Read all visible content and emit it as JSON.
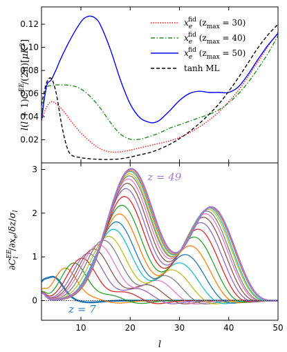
{
  "chart_data": [
    {
      "type": "line",
      "panel": "top",
      "ylabel": "l(l+1)C_l^{EE}/(2π)[μK²]",
      "xlim": [
        2,
        50
      ],
      "ylim": [
        0,
        0.135
      ],
      "yticks": [
        0.02,
        0.04,
        0.06,
        0.08,
        0.1,
        0.12
      ],
      "ytick_labels": [
        "0.02",
        "0.04",
        "0.06",
        "0.08",
        "0.10",
        "0.12"
      ],
      "legend_position": "top-right",
      "series": [
        {
          "name": "x_e^fid (z_max = 30)",
          "legend": {
            "main": "x",
            "sub": "e",
            "sup": "fid",
            "args": " (z",
            "args_sub": "max",
            "args_end": " = 30)"
          },
          "color": "#ff0000",
          "style": "dotted",
          "x": [
            2,
            3,
            4,
            5,
            6,
            7,
            8,
            10,
            12,
            14,
            16,
            18,
            20,
            22,
            24,
            26,
            28,
            30,
            32,
            34,
            36,
            38,
            40,
            42,
            44,
            46,
            48,
            50
          ],
          "values": [
            0.037,
            0.048,
            0.053,
            0.051,
            0.047,
            0.042,
            0.036,
            0.026,
            0.018,
            0.012,
            0.0095,
            0.0095,
            0.011,
            0.013,
            0.015,
            0.017,
            0.019,
            0.022,
            0.026,
            0.031,
            0.037,
            0.044,
            0.053,
            0.063,
            0.075,
            0.088,
            0.101,
            0.113
          ]
        },
        {
          "name": "x_e^fid (z_max = 40)",
          "legend": {
            "main": "x",
            "sub": "e",
            "sup": "fid",
            "args": " (z",
            "args_sub": "max",
            "args_end": " = 40)"
          },
          "color": "#228b22",
          "style": "dashdot",
          "x": [
            2,
            3,
            4,
            5,
            6,
            8,
            10,
            12,
            14,
            16,
            18,
            20,
            22,
            24,
            26,
            28,
            30,
            32,
            34,
            36,
            38,
            40,
            42,
            44,
            46,
            48,
            50
          ],
          "values": [
            0.044,
            0.064,
            0.067,
            0.0675,
            0.0675,
            0.067,
            0.064,
            0.057,
            0.047,
            0.035,
            0.025,
            0.0205,
            0.0205,
            0.023,
            0.026,
            0.03,
            0.033,
            0.036,
            0.039,
            0.042,
            0.046,
            0.052,
            0.06,
            0.07,
            0.082,
            0.095,
            0.11
          ]
        },
        {
          "name": "x_e^fid (z_max = 50)",
          "legend": {
            "main": "x",
            "sub": "e",
            "sup": "fid",
            "args": " (z",
            "args_sub": "max",
            "args_end": " = 50)"
          },
          "color": "#0000ff",
          "style": "solid",
          "x": [
            2,
            3,
            4,
            5,
            6,
            8,
            10,
            11,
            12,
            13,
            14,
            16,
            18,
            20,
            22,
            24,
            25,
            26,
            28,
            30,
            32,
            34,
            36,
            38,
            40,
            42,
            44,
            46,
            48,
            50
          ],
          "values": [
            0.037,
            0.066,
            0.072,
            0.081,
            0.091,
            0.108,
            0.122,
            0.126,
            0.127,
            0.125,
            0.119,
            0.098,
            0.072,
            0.051,
            0.039,
            0.035,
            0.035,
            0.037,
            0.045,
            0.054,
            0.06,
            0.062,
            0.061,
            0.061,
            0.061,
            0.066,
            0.077,
            0.09,
            0.102,
            0.112
          ]
        },
        {
          "name": "tanh ML",
          "legend": {
            "main": "tanh ML"
          },
          "color": "#000000",
          "style": "dashed",
          "x": [
            2,
            3,
            4,
            5,
            6,
            7,
            8,
            10,
            12,
            14,
            16,
            18,
            20,
            22,
            24,
            26,
            28,
            30,
            32,
            34,
            36,
            38,
            40,
            42,
            44,
            46,
            48,
            50
          ],
          "values": [
            0.05,
            0.069,
            0.073,
            0.06,
            0.035,
            0.016,
            0.007,
            0.0045,
            0.0035,
            0.003,
            0.003,
            0.0035,
            0.005,
            0.007,
            0.009,
            0.012,
            0.016,
            0.021,
            0.027,
            0.034,
            0.042,
            0.051,
            0.062,
            0.074,
            0.087,
            0.1,
            0.111,
            0.12
          ]
        }
      ]
    },
    {
      "type": "line",
      "panel": "bottom",
      "xlabel": "l",
      "ylabel": "∂C_l^{EE}/∂x_e/δz/σ_l",
      "xlim": [
        2,
        50
      ],
      "ylim": [
        -0.45,
        3.15
      ],
      "xticks": [
        10,
        20,
        30,
        40,
        50
      ],
      "xtick_labels": [
        "10",
        "20",
        "30",
        "40",
        "50"
      ],
      "yticks": [
        0,
        1,
        2,
        3
      ],
      "ytick_labels": [
        "0",
        "1",
        "2",
        "3"
      ],
      "zero_line": {
        "style": "dotted",
        "color": "#000000"
      },
      "annotations": [
        {
          "text": "z = 49",
          "x": 23.5,
          "y": 2.75,
          "color": "#a07cc8"
        },
        {
          "text": "z = 7",
          "x": 7.5,
          "y": -0.28,
          "color": "#2a7fbf"
        }
      ],
      "series_params": {
        "note": "response curves for z = 7 ... 49; each curve has a primary peak near x1 and a second peak near x2",
        "curves": [
          {
            "z": 7,
            "color": "#1f77b4",
            "width": 2.6,
            "a1": 0.52,
            "x1": 4.3,
            "s1": 1.9,
            "a2": 0.04,
            "x2": 6.5,
            "s2": 2.0
          },
          {
            "z": 9,
            "color": "#ff7f0e",
            "a1": 0.74,
            "x1": 6.8,
            "s1": 2.3,
            "a2": 0.06,
            "x2": 12.0,
            "s2": 2.2
          },
          {
            "z": 11,
            "color": "#2ca02c",
            "a1": 0.86,
            "x1": 8.6,
            "s1": 2.6,
            "a2": 0.12,
            "x2": 16.0,
            "s2": 2.4
          },
          {
            "z": 13,
            "color": "#d62728",
            "a1": 0.97,
            "x1": 10.2,
            "s1": 2.9,
            "a2": 0.19,
            "x2": 19.0,
            "s2": 2.6
          },
          {
            "z": 15,
            "color": "#9467bd",
            "a1": 1.08,
            "x1": 11.5,
            "s1": 3.1,
            "a2": 0.27,
            "x2": 21.5,
            "s2": 2.8
          },
          {
            "z": 17,
            "color": "#8c564b",
            "a1": 1.18,
            "x1": 12.6,
            "s1": 3.3,
            "a2": 0.36,
            "x2": 23.5,
            "s2": 3.0
          },
          {
            "z": 19,
            "color": "#e377c2",
            "a1": 1.28,
            "x1": 13.6,
            "s1": 3.5,
            "a2": 0.46,
            "x2": 25.5,
            "s2": 3.1
          },
          {
            "z": 21,
            "color": "#7f7f7f",
            "a1": 1.38,
            "x1": 14.6,
            "s1": 3.6,
            "a2": 0.57,
            "x2": 27.0,
            "s2": 3.3
          },
          {
            "z": 23,
            "color": "#bcbd22",
            "a1": 1.47,
            "x1": 15.6,
            "s1": 3.7,
            "a2": 0.7,
            "x2": 28.5,
            "s2": 3.5
          },
          {
            "z": 25,
            "color": "#17becf",
            "a1": 1.63,
            "x1": 16.6,
            "s1": 3.8,
            "a2": 0.86,
            "x2": 30.0,
            "s2": 3.6
          },
          {
            "z": 27,
            "color": "#1f77b4",
            "a1": 1.8,
            "x1": 17.2,
            "s1": 3.9,
            "a2": 1.05,
            "x2": 31.2,
            "s2": 3.7
          },
          {
            "z": 29,
            "color": "#ff7f0e",
            "a1": 1.98,
            "x1": 17.8,
            "s1": 4.0,
            "a2": 1.25,
            "x2": 32.2,
            "s2": 3.8
          },
          {
            "z": 31,
            "color": "#2ca02c",
            "a1": 2.18,
            "x1": 18.3,
            "s1": 4.1,
            "a2": 1.45,
            "x2": 33.0,
            "s2": 3.9
          },
          {
            "z": 33,
            "color": "#d62728",
            "a1": 2.38,
            "x1": 18.8,
            "s1": 4.2,
            "a2": 1.63,
            "x2": 33.8,
            "s2": 4.0
          },
          {
            "z": 35,
            "color": "#9467bd",
            "a1": 2.56,
            "x1": 19.1,
            "s1": 4.3,
            "a2": 1.78,
            "x2": 34.4,
            "s2": 4.1
          },
          {
            "z": 37,
            "color": "#8c564b",
            "a1": 2.68,
            "x1": 19.4,
            "s1": 4.4,
            "a2": 1.9,
            "x2": 34.9,
            "s2": 4.2
          },
          {
            "z": 39,
            "color": "#e377c2",
            "a1": 2.78,
            "x1": 19.6,
            "s1": 4.5,
            "a2": 1.98,
            "x2": 35.3,
            "s2": 4.3
          },
          {
            "z": 41,
            "color": "#7f7f7f",
            "a1": 2.85,
            "x1": 19.8,
            "s1": 4.6,
            "a2": 2.04,
            "x2": 35.6,
            "s2": 4.3
          },
          {
            "z": 43,
            "color": "#bcbd22",
            "a1": 2.9,
            "x1": 19.9,
            "s1": 4.6,
            "a2": 2.08,
            "x2": 35.9,
            "s2": 4.4
          },
          {
            "z": 45,
            "color": "#17becf",
            "a1": 2.95,
            "x1": 20.0,
            "s1": 4.7,
            "a2": 2.11,
            "x2": 36.1,
            "s2": 4.4
          },
          {
            "z": 47,
            "color": "#ff7f0e",
            "a1": 2.97,
            "x1": 20.1,
            "s1": 4.7,
            "a2": 2.12,
            "x2": 36.3,
            "s2": 4.5
          },
          {
            "z": 49,
            "color": "#a07cc8",
            "width": 2.6,
            "a1": 3.01,
            "x1": 20.2,
            "s1": 4.8,
            "a2": 2.13,
            "x2": 36.5,
            "s2": 4.5
          }
        ]
      }
    }
  ]
}
